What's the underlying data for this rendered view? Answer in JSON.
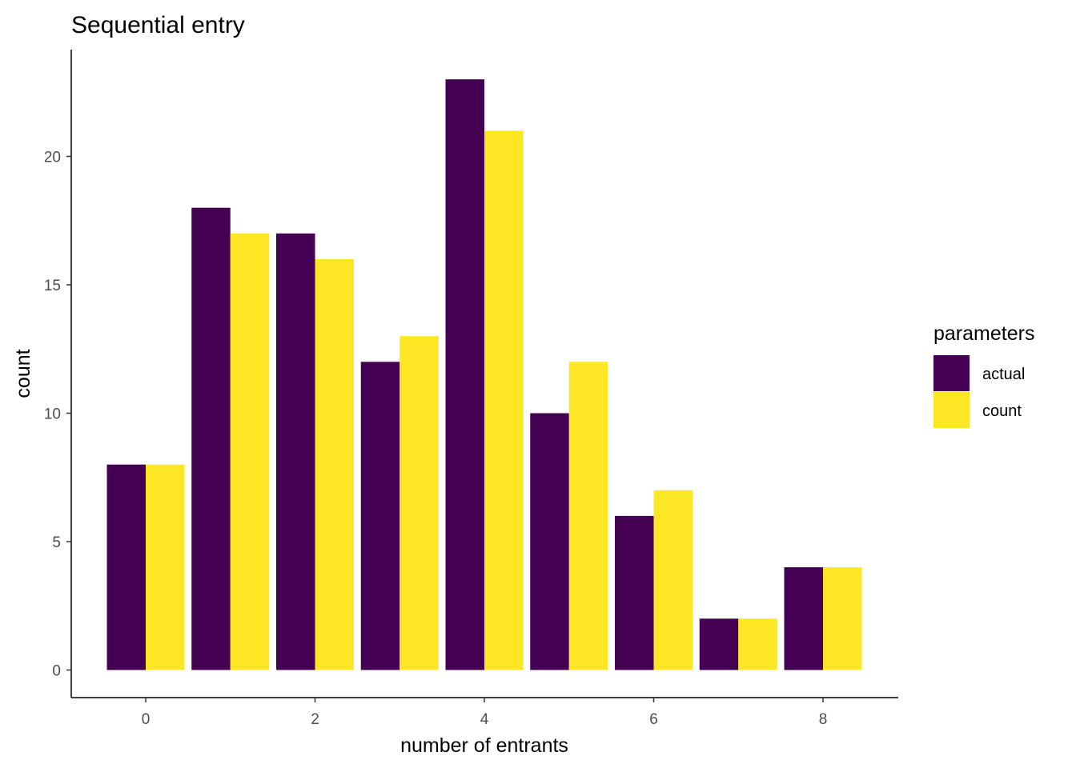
{
  "chart_data": {
    "type": "bar",
    "title": "Sequential entry",
    "xlabel": "number of entrants",
    "ylabel": "count",
    "x": [
      0,
      1,
      2,
      3,
      4,
      5,
      6,
      7,
      8
    ],
    "xticks": [
      "0",
      "2",
      "4",
      "6",
      "8"
    ],
    "yticks": [
      "0",
      "5",
      "10",
      "15",
      "20"
    ],
    "ylim": [
      0,
      23
    ],
    "legend": {
      "title": "parameters",
      "position": "right"
    },
    "series": [
      {
        "name": "actual",
        "color": "#440154",
        "values": [
          8,
          18,
          17,
          12,
          23,
          10,
          6,
          2,
          4
        ]
      },
      {
        "name": "count",
        "color": "#FDE725",
        "values": [
          8,
          17,
          16,
          13,
          21,
          12,
          7,
          2,
          4
        ]
      }
    ],
    "grid": false
  }
}
